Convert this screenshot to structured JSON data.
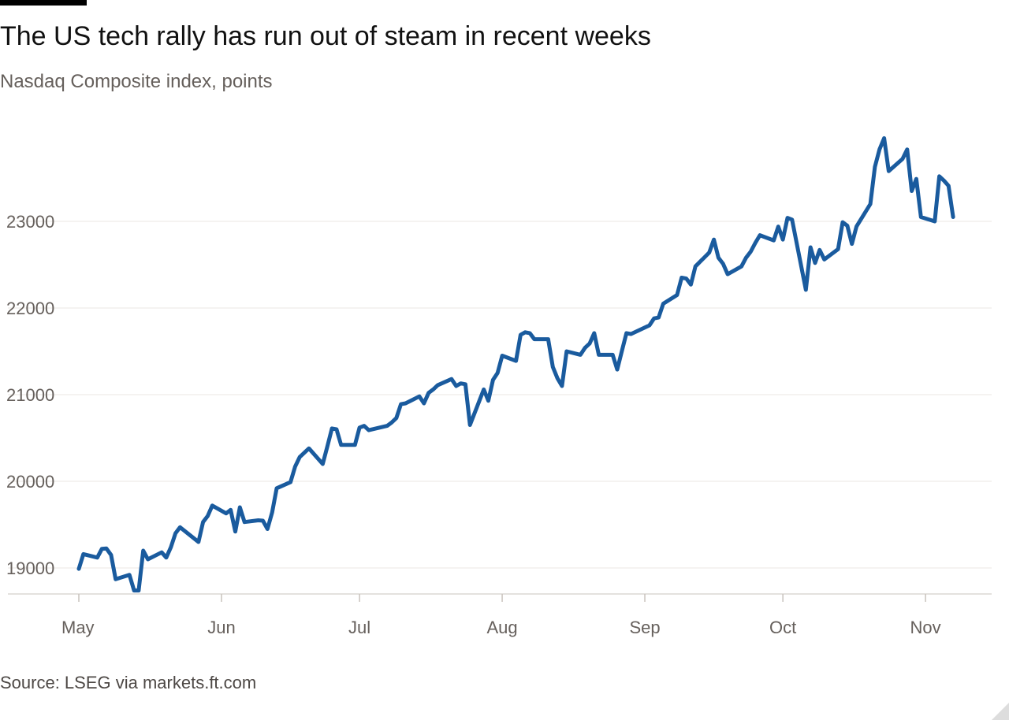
{
  "header": {
    "title": "The US tech rally has run out of steam in recent weeks",
    "subtitle": "Nasdaq Composite index, points"
  },
  "footer": {
    "source": "Source: LSEG via markets.ft.com"
  },
  "colors": {
    "line": "#1a5b9e",
    "grid": "#ebe7e3",
    "axis": "#c9c3bd",
    "tick_text": "#66605c"
  },
  "chart_data": {
    "type": "line",
    "title": "The US tech rally has run out of steam in recent weeks",
    "subtitle": "Nasdaq Composite index, points",
    "xlabel": "",
    "ylabel": "",
    "grid": true,
    "legend": "none",
    "xlim": [
      "2025-05-01",
      "2025-11-14"
    ],
    "ylim": [
      18700,
      24100
    ],
    "x_ticks": [
      {
        "date": "2025-05-01",
        "label": "May"
      },
      {
        "date": "2025-06-01",
        "label": "Jun"
      },
      {
        "date": "2025-07-01",
        "label": "Jul"
      },
      {
        "date": "2025-08-01",
        "label": "Aug"
      },
      {
        "date": "2025-09-01",
        "label": "Sep"
      },
      {
        "date": "2025-10-01",
        "label": "Oct"
      },
      {
        "date": "2025-11-01",
        "label": "Nov"
      }
    ],
    "y_ticks": [
      19000,
      20000,
      21000,
      22000,
      23000
    ],
    "series": [
      {
        "name": "",
        "points": [
          [
            "2025-05-01",
            18990
          ],
          [
            "2025-05-02",
            19160
          ],
          [
            "2025-05-05",
            19120
          ],
          [
            "2025-05-06",
            19220
          ],
          [
            "2025-05-07",
            19225
          ],
          [
            "2025-05-08",
            19150
          ],
          [
            "2025-05-09",
            18870
          ],
          [
            "2025-05-12",
            18920
          ],
          [
            "2025-05-13",
            18740
          ],
          [
            "2025-05-14",
            18740
          ],
          [
            "2025-05-15",
            19200
          ],
          [
            "2025-05-16",
            19100
          ],
          [
            "2025-05-19",
            19180
          ],
          [
            "2025-05-20",
            19120
          ],
          [
            "2025-05-21",
            19240
          ],
          [
            "2025-05-22",
            19400
          ],
          [
            "2025-05-23",
            19470
          ],
          [
            "2025-05-27",
            19300
          ],
          [
            "2025-05-28",
            19530
          ],
          [
            "2025-05-29",
            19600
          ],
          [
            "2025-05-30",
            19720
          ],
          [
            "2025-06-02",
            19630
          ],
          [
            "2025-06-03",
            19670
          ],
          [
            "2025-06-04",
            19420
          ],
          [
            "2025-06-05",
            19700
          ],
          [
            "2025-06-06",
            19530
          ],
          [
            "2025-06-09",
            19550
          ],
          [
            "2025-06-10",
            19545
          ],
          [
            "2025-06-11",
            19450
          ],
          [
            "2025-06-12",
            19640
          ],
          [
            "2025-06-13",
            19920
          ],
          [
            "2025-06-16",
            19990
          ],
          [
            "2025-06-17",
            20170
          ],
          [
            "2025-06-18",
            20280
          ],
          [
            "2025-06-20",
            20380
          ],
          [
            "2025-06-23",
            20200
          ],
          [
            "2025-06-24",
            20400
          ],
          [
            "2025-06-25",
            20610
          ],
          [
            "2025-06-26",
            20600
          ],
          [
            "2025-06-27",
            20420
          ],
          [
            "2025-06-30",
            20420
          ],
          [
            "2025-07-01",
            20620
          ],
          [
            "2025-07-02",
            20640
          ],
          [
            "2025-07-03",
            20590
          ],
          [
            "2025-07-07",
            20640
          ],
          [
            "2025-07-08",
            20680
          ],
          [
            "2025-07-09",
            20730
          ],
          [
            "2025-07-10",
            20890
          ],
          [
            "2025-07-11",
            20900
          ],
          [
            "2025-07-14",
            20980
          ],
          [
            "2025-07-15",
            20900
          ],
          [
            "2025-07-16",
            21020
          ],
          [
            "2025-07-17",
            21060
          ],
          [
            "2025-07-18",
            21110
          ],
          [
            "2025-07-21",
            21180
          ],
          [
            "2025-07-22",
            21100
          ],
          [
            "2025-07-23",
            21130
          ],
          [
            "2025-07-24",
            21120
          ],
          [
            "2025-07-25",
            20650
          ],
          [
            "2025-07-28",
            21060
          ],
          [
            "2025-07-29",
            20930
          ],
          [
            "2025-07-30",
            21170
          ],
          [
            "2025-07-31",
            21250
          ],
          [
            "2025-08-01",
            21450
          ],
          [
            "2025-08-04",
            21390
          ],
          [
            "2025-08-05",
            21690
          ],
          [
            "2025-08-06",
            21720
          ],
          [
            "2025-08-07",
            21710
          ],
          [
            "2025-08-08",
            21640
          ],
          [
            "2025-08-11",
            21640
          ],
          [
            "2025-08-12",
            21320
          ],
          [
            "2025-08-13",
            21190
          ],
          [
            "2025-08-14",
            21100
          ],
          [
            "2025-08-15",
            21500
          ],
          [
            "2025-08-18",
            21460
          ],
          [
            "2025-08-19",
            21540
          ],
          [
            "2025-08-20",
            21590
          ],
          [
            "2025-08-21",
            21710
          ],
          [
            "2025-08-22",
            21460
          ],
          [
            "2025-08-25",
            21460
          ],
          [
            "2025-08-26",
            21290
          ],
          [
            "2025-08-27",
            21500
          ],
          [
            "2025-08-28",
            21710
          ],
          [
            "2025-08-29",
            21700
          ],
          [
            "2025-09-02",
            21800
          ],
          [
            "2025-09-03",
            21880
          ],
          [
            "2025-09-04",
            21890
          ],
          [
            "2025-09-05",
            22050
          ],
          [
            "2025-09-08",
            22150
          ],
          [
            "2025-09-09",
            22350
          ],
          [
            "2025-09-10",
            22340
          ],
          [
            "2025-09-11",
            22270
          ],
          [
            "2025-09-12",
            22480
          ],
          [
            "2025-09-15",
            22640
          ],
          [
            "2025-09-16",
            22790
          ],
          [
            "2025-09-17",
            22580
          ],
          [
            "2025-09-18",
            22510
          ],
          [
            "2025-09-19",
            22390
          ],
          [
            "2025-09-22",
            22480
          ],
          [
            "2025-09-23",
            22580
          ],
          [
            "2025-09-24",
            22650
          ],
          [
            "2025-09-25",
            22750
          ],
          [
            "2025-09-26",
            22840
          ],
          [
            "2025-09-29",
            22780
          ],
          [
            "2025-09-30",
            22940
          ],
          [
            "2025-10-01",
            22790
          ],
          [
            "2025-10-02",
            23040
          ],
          [
            "2025-10-03",
            23020
          ],
          [
            "2025-10-06",
            22210
          ],
          [
            "2025-10-07",
            22700
          ],
          [
            "2025-10-08",
            22520
          ],
          [
            "2025-10-09",
            22670
          ],
          [
            "2025-10-10",
            22560
          ],
          [
            "2025-10-13",
            22680
          ],
          [
            "2025-10-14",
            22990
          ],
          [
            "2025-10-15",
            22950
          ],
          [
            "2025-10-16",
            22740
          ],
          [
            "2025-10-17",
            22940
          ],
          [
            "2025-10-20",
            23200
          ],
          [
            "2025-10-21",
            23630
          ],
          [
            "2025-10-22",
            23830
          ],
          [
            "2025-10-23",
            23960
          ],
          [
            "2025-10-24",
            23580
          ],
          [
            "2025-10-27",
            23720
          ],
          [
            "2025-10-28",
            23830
          ],
          [
            "2025-10-29",
            23350
          ],
          [
            "2025-10-30",
            23490
          ],
          [
            "2025-10-31",
            23050
          ],
          [
            "2025-11-03",
            23000
          ],
          [
            "2025-11-04",
            23520
          ],
          [
            "2025-11-05",
            23470
          ],
          [
            "2025-11-06",
            23410
          ],
          [
            "2025-11-07",
            23050
          ]
        ]
      }
    ]
  }
}
